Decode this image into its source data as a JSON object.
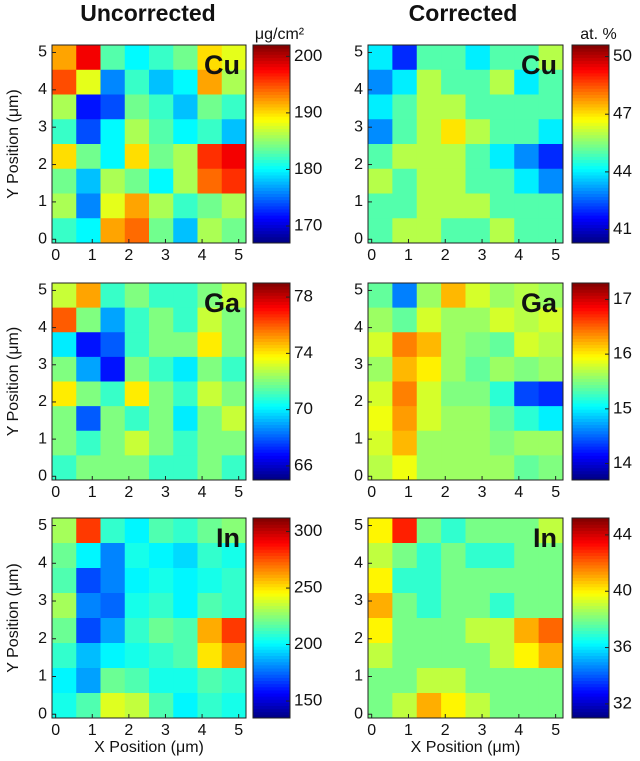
{
  "column_titles": [
    "Uncorrected",
    "Corrected"
  ],
  "chart_data": [
    {
      "type": "heatmap",
      "label": "Cu",
      "colormap": "jet",
      "colorbar_label": "μg/cm²",
      "y_label": "Y Position (μm)",
      "xlim": [
        -0.1,
        5.2
      ],
      "ylim": [
        -0.1,
        5.2
      ],
      "xticks": [
        0,
        1,
        2,
        3,
        4,
        5
      ],
      "yticks": [
        0,
        1,
        2,
        3,
        4,
        5
      ],
      "zlim": [
        167,
        202
      ],
      "zticks": [
        170,
        180,
        190,
        200
      ],
      "z": [
        [
          192,
          198,
          183,
          180,
          182,
          184,
          190,
          188
        ],
        [
          195,
          188,
          176,
          182,
          178,
          180,
          192,
          186
        ],
        [
          186,
          172,
          174,
          184,
          182,
          178,
          184,
          182
        ],
        [
          182,
          174,
          180,
          186,
          183,
          180,
          182,
          178
        ],
        [
          190,
          184,
          180,
          190,
          184,
          186,
          196,
          198
        ],
        [
          184,
          178,
          186,
          184,
          180,
          186,
          194,
          196
        ],
        [
          186,
          176,
          188,
          192,
          186,
          182,
          184,
          186
        ],
        [
          182,
          180,
          192,
          194,
          184,
          178,
          186,
          184
        ]
      ]
    },
    {
      "type": "heatmap",
      "label": "Cu",
      "colormap": "jet",
      "colorbar_label": "at. %",
      "xlim": [
        -0.1,
        5.2
      ],
      "ylim": [
        -0.1,
        5.2
      ],
      "xticks": [
        0,
        1,
        2,
        3,
        4,
        5
      ],
      "yticks": [
        0,
        1,
        2,
        3,
        4,
        5
      ],
      "zlim": [
        40.3,
        50.6
      ],
      "zticks": [
        41,
        44,
        47,
        50
      ],
      "z": [
        [
          44,
          42,
          45,
          45,
          44,
          45,
          45,
          46
        ],
        [
          43,
          44,
          46,
          45,
          45,
          46,
          44,
          45
        ],
        [
          44,
          45,
          46,
          46,
          45,
          45,
          45,
          45
        ],
        [
          43,
          45,
          46,
          47,
          46,
          45,
          45,
          44
        ],
        [
          45,
          46,
          46,
          46,
          45,
          44,
          43,
          42
        ],
        [
          46,
          45,
          46,
          46,
          45,
          45,
          44,
          43
        ],
        [
          45,
          45,
          46,
          46,
          46,
          45,
          45,
          45
        ],
        [
          45,
          46,
          46,
          45,
          45,
          46,
          45,
          45
        ]
      ]
    },
    {
      "type": "heatmap",
      "label": "Ga",
      "colormap": "jet",
      "y_label": "Y Position (μm)",
      "xlim": [
        -0.1,
        5.2
      ],
      "ylim": [
        -0.1,
        5.2
      ],
      "xticks": [
        0,
        1,
        2,
        3,
        4,
        5
      ],
      "yticks": [
        0,
        1,
        2,
        3,
        4,
        5
      ],
      "zlim": [
        65,
        79
      ],
      "zticks": [
        66,
        70,
        74,
        78
      ],
      "z": [
        [
          73,
          75,
          71,
          72,
          71,
          71,
          72,
          73
        ],
        [
          76,
          72,
          69,
          71,
          72,
          71,
          73,
          72
        ],
        [
          70,
          67,
          68,
          71,
          72,
          72,
          74,
          72
        ],
        [
          72,
          69,
          67,
          72,
          71,
          70,
          72,
          71
        ],
        [
          74,
          72,
          71,
          74,
          72,
          71,
          73,
          72
        ],
        [
          72,
          68,
          72,
          71,
          72,
          70,
          72,
          73
        ],
        [
          72,
          71,
          72,
          73,
          72,
          71,
          72,
          72
        ],
        [
          71,
          72,
          72,
          72,
          71,
          71,
          72,
          71
        ]
      ]
    },
    {
      "type": "heatmap",
      "label": "Ga",
      "colormap": "jet",
      "xlim": [
        -0.1,
        5.2
      ],
      "ylim": [
        -0.1,
        5.2
      ],
      "xticks": [
        0,
        1,
        2,
        3,
        4,
        5
      ],
      "yticks": [
        0,
        1,
        2,
        3,
        4,
        5
      ],
      "zlim": [
        13.7,
        17.3
      ],
      "zticks": [
        14,
        15,
        16,
        17
      ],
      "z": [
        [
          15.4,
          14.6,
          15.6,
          16.2,
          15.8,
          15.6,
          15.7,
          15.6
        ],
        [
          15.6,
          15.4,
          15.8,
          15.6,
          15.6,
          15.8,
          15.7,
          15.8
        ],
        [
          15.8,
          16.4,
          16.2,
          15.6,
          15.5,
          15.4,
          15.8,
          15.7
        ],
        [
          15.6,
          16.2,
          16.0,
          15.6,
          15.4,
          15.6,
          15.5,
          15.6
        ],
        [
          15.8,
          16.4,
          15.8,
          15.5,
          15.5,
          15.2,
          14.4,
          14.3
        ],
        [
          15.9,
          16.3,
          15.8,
          15.6,
          15.6,
          15.4,
          15.2,
          15.0
        ],
        [
          15.8,
          16.2,
          15.6,
          15.6,
          15.6,
          15.5,
          15.6,
          15.6
        ],
        [
          15.7,
          15.9,
          15.6,
          15.6,
          15.6,
          15.6,
          15.4,
          15.5
        ]
      ]
    },
    {
      "type": "heatmap",
      "label": "In",
      "colormap": "jet",
      "y_label": "Y Position (μm)",
      "x_label": "X Position (μm)",
      "xlim": [
        -0.1,
        5.2
      ],
      "ylim": [
        -0.1,
        5.2
      ],
      "xticks": [
        0,
        1,
        2,
        3,
        4,
        5
      ],
      "yticks": [
        0,
        1,
        2,
        3,
        4,
        5
      ],
      "zlim": [
        135,
        312
      ],
      "zticks": [
        150,
        200,
        250,
        300
      ],
      "z": [
        [
          230,
          280,
          210,
          200,
          215,
          210,
          220,
          225
        ],
        [
          220,
          200,
          180,
          205,
          200,
          195,
          210,
          205
        ],
        [
          215,
          170,
          180,
          200,
          205,
          200,
          205,
          210
        ],
        [
          230,
          180,
          175,
          205,
          210,
          200,
          215,
          210
        ],
        [
          220,
          170,
          185,
          210,
          220,
          215,
          260,
          280
        ],
        [
          210,
          190,
          200,
          205,
          210,
          215,
          250,
          265
        ],
        [
          200,
          185,
          220,
          215,
          205,
          205,
          215,
          210
        ],
        [
          205,
          215,
          240,
          235,
          215,
          200,
          210,
          205
        ]
      ]
    },
    {
      "type": "heatmap",
      "label": "In",
      "colormap": "jet",
      "x_label": "X Position (μm)",
      "xlim": [
        -0.1,
        5.2
      ],
      "ylim": [
        -0.1,
        5.2
      ],
      "xticks": [
        0,
        1,
        2,
        3,
        4,
        5
      ],
      "yticks": [
        0,
        1,
        2,
        3,
        4,
        5
      ],
      "zlim": [
        31,
        45.2
      ],
      "zticks": [
        32,
        36,
        40,
        44
      ],
      "z": [
        [
          40,
          43,
          38,
          37,
          38,
          38,
          38,
          39
        ],
        [
          39,
          38,
          37,
          38,
          37,
          37,
          38,
          38
        ],
        [
          40,
          37,
          37,
          38,
          38,
          38,
          38,
          38
        ],
        [
          41,
          38,
          37,
          38,
          38,
          37,
          38,
          38
        ],
        [
          40,
          38,
          38,
          38,
          39,
          39,
          41,
          42
        ],
        [
          39,
          38,
          38,
          38,
          38,
          39,
          40,
          41
        ],
        [
          38,
          38,
          39,
          39,
          38,
          38,
          38,
          38
        ],
        [
          38,
          39,
          41,
          40,
          39,
          38,
          38,
          38
        ]
      ]
    }
  ]
}
